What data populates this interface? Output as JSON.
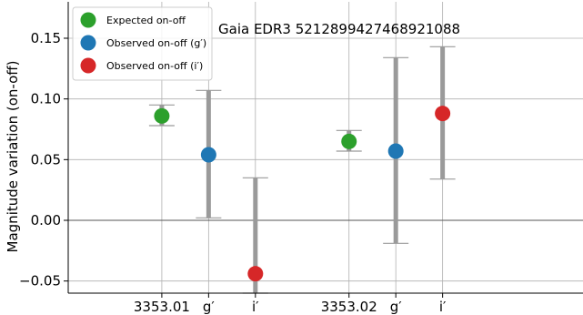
{
  "chart_data": {
    "type": "scatter",
    "title": "",
    "annotation": "Gaia EDR3 5212899427468921088",
    "xlabel": "",
    "ylabel": "Magnitude variation (on-off)",
    "ylim": [
      -0.06,
      0.18
    ],
    "y_ticks": [
      -0.05,
      0.0,
      0.05,
      0.1,
      0.15
    ],
    "y_tick_labels": [
      "−0.05",
      "0.00",
      "0.05",
      "0.10",
      "0.15"
    ],
    "xlim": [
      -1,
      10
    ],
    "x_ticks": [
      1,
      2,
      3,
      5,
      6,
      7
    ],
    "x_tick_labels": [
      "3353.01",
      "g′",
      "i′",
      "3353.02",
      "g′",
      "i′"
    ],
    "grid": true,
    "zero_line": true,
    "legend_position": "top-left",
    "series": [
      {
        "name": "Expected on-off",
        "color": "#2ca02c",
        "points": [
          {
            "x": 1,
            "y": 0.086,
            "err_low": 0.078,
            "err_high": 0.095
          },
          {
            "x": 5,
            "y": 0.065,
            "err_low": 0.057,
            "err_high": 0.074
          }
        ]
      },
      {
        "name": "Observed on-off (g′)",
        "color": "#1f77b4",
        "points": [
          {
            "x": 2,
            "y": 0.054,
            "err_low": 0.002,
            "err_high": 0.107
          },
          {
            "x": 6,
            "y": 0.057,
            "err_low": -0.019,
            "err_high": 0.134
          }
        ]
      },
      {
        "name": "Observed on-off (i′)",
        "color": "#d62728",
        "points": [
          {
            "x": 3,
            "y": -0.044,
            "err_low": -0.06,
            "err_high": 0.035
          },
          {
            "x": 7,
            "y": 0.088,
            "err_low": 0.034,
            "err_high": 0.143
          }
        ]
      }
    ]
  }
}
